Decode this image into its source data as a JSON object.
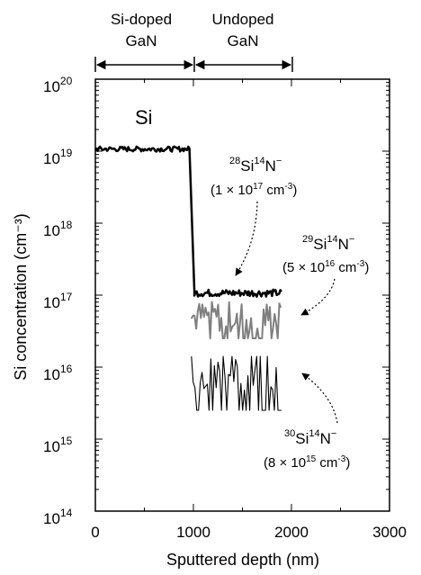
{
  "chart_data": {
    "type": "line",
    "xlabel": "Sputtered depth (nm)",
    "ylabel": "Si concentration (cm⁻³)",
    "xlim": [
      0,
      3000
    ],
    "ylim_log10": [
      14,
      20
    ],
    "y_scale": "log",
    "x_ticks": [
      "0",
      "1000",
      "2000",
      "3000"
    ],
    "y_ticks": [
      {
        "base": "10",
        "exp": "14"
      },
      {
        "base": "10",
        "exp": "15"
      },
      {
        "base": "10",
        "exp": "16"
      },
      {
        "base": "10",
        "exp": "17"
      },
      {
        "base": "10",
        "exp": "18"
      },
      {
        "base": "10",
        "exp": "19"
      },
      {
        "base": "10",
        "exp": "20"
      }
    ],
    "regions": [
      {
        "label_line1": "Si-doped",
        "label_line2": "GaN",
        "x_range": [
          0,
          980
        ]
      },
      {
        "label_line1": "Undoped",
        "label_line2": "GaN",
        "x_range": [
          980,
          1950
        ]
      }
    ],
    "series": [
      {
        "name": "Si",
        "color": "#000000",
        "segments": [
          {
            "x": [
              0,
              960
            ],
            "y_log10_mean": 19.03,
            "noise": 0.035
          },
          {
            "x": [
              960,
              1010
            ],
            "y_log10": [
              19.03,
              17.05
            ]
          },
          {
            "x": [
              1010,
              1900
            ],
            "y_log10_mean": 17.03,
            "noise": 0.05
          }
        ]
      },
      {
        "name": "29Si14N",
        "color": "#808080",
        "x_range": [
          980,
          1900
        ],
        "y_log10_mean": 16.7,
        "noise": 0.22,
        "y_log10_floor": 16.4
      },
      {
        "name": "30Si14N",
        "color": "#000000",
        "x_range": [
          980,
          1900
        ],
        "y_log10_mean": 15.9,
        "noise": 0.22,
        "y_log10_floor": 15.4
      }
    ],
    "annotations": [
      {
        "id": "si",
        "text": "Si"
      },
      {
        "id": "a28",
        "iso": "28",
        "elem": "Si",
        "iso2": "14",
        "elem2": "N",
        "charge": "−",
        "conc_pre": "(1 × 10",
        "conc_exp": "17",
        "conc_post": " cm",
        "conc_exp2": "-3",
        "conc_close": ")"
      },
      {
        "id": "a29",
        "iso": "29",
        "elem": "Si",
        "iso2": "14",
        "elem2": "N",
        "charge": "−",
        "conc_pre": "(5 × 10",
        "conc_exp": "16",
        "conc_post": " cm",
        "conc_exp2": "-3",
        "conc_close": ")"
      },
      {
        "id": "a30",
        "iso": "30",
        "elem": "Si",
        "iso2": "14",
        "elem2": "N",
        "charge": "−",
        "conc_pre": "(8 × 10",
        "conc_exp": "15",
        "conc_post": " cm",
        "conc_exp2": "-3",
        "conc_close": ")"
      }
    ]
  }
}
